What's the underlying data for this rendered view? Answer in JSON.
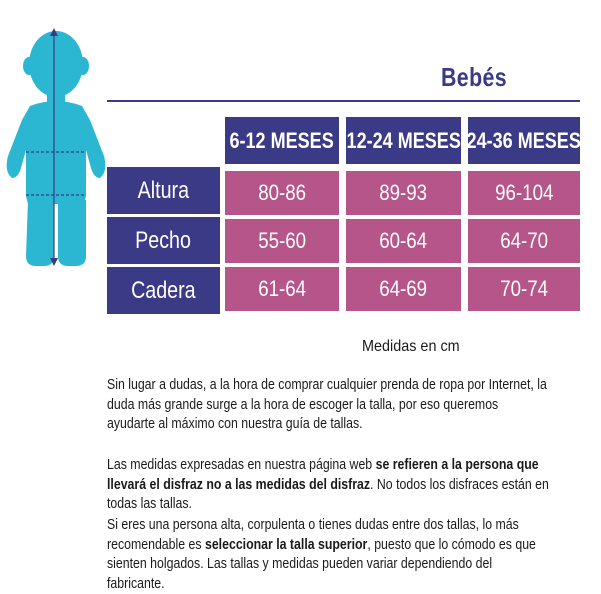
{
  "title": "Bebés",
  "columns": [
    "6-12 MESES",
    "12-24 MESES",
    "24-36 MESES"
  ],
  "rows": [
    {
      "label": "Altura",
      "values": [
        "80-86",
        "89-93",
        "96-104"
      ]
    },
    {
      "label": "Pecho",
      "values": [
        "55-60",
        "60-64",
        "64-70"
      ]
    },
    {
      "label": "Cadera",
      "values": [
        "61-64",
        "64-69",
        "70-74"
      ]
    }
  ],
  "units": "Medidas en cm",
  "paragraphs": {
    "p1": "Sin lugar a dudas, a la hora de comprar cualquier prenda de ropa por Internet, la duda más grande surge a la hora de escoger la talla, por eso queremos ayudarte al máximo con nuestra guía de tallas.",
    "p2_a": "Las medidas expresadas en nuestra página web ",
    "p2_b": "se refieren a la persona que llevará el disfraz no a las medidas del disfraz",
    "p2_c": ". No todos los disfraces están en todas las tallas.",
    "p3_a": "Si eres una persona alta, corpulenta o tienes dudas entre dos tallas, lo más recomendable es ",
    "p3_b": "seleccionar la talla superior",
    "p3_c": ", puesto que lo cómodo es que sienten holgados. Las tallas y medidas pueden variar dependiendo del fabricante."
  },
  "colors": {
    "primary": "#3a3a86",
    "accent": "#b5558a",
    "figure": "#2bb7d2"
  }
}
